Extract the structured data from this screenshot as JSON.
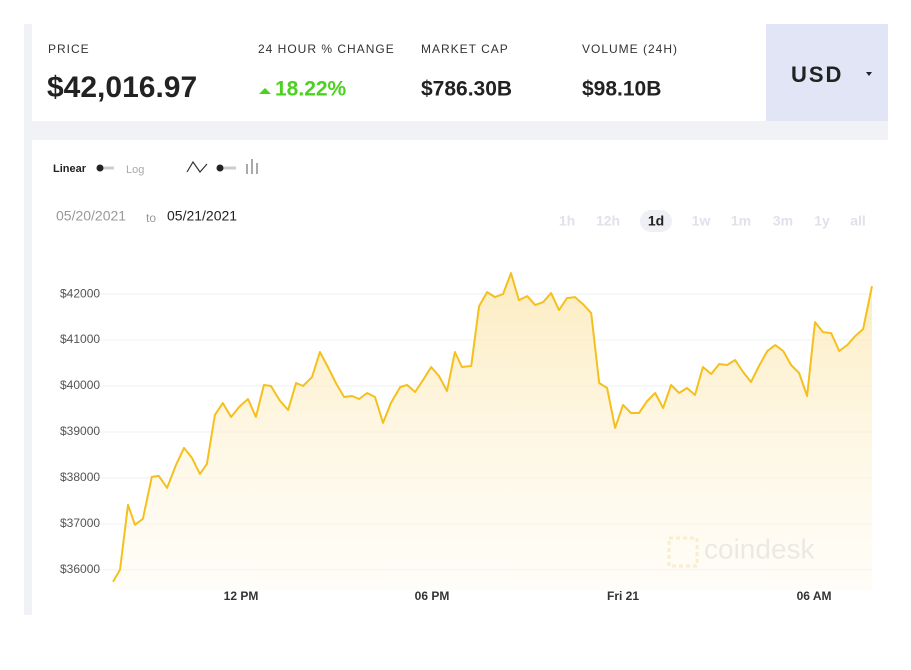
{
  "header": {
    "price_label": "PRICE",
    "price": "$42,016.97",
    "change_label": "24 HOUR % CHANGE",
    "change": "18.22%",
    "market_cap_label": "MARKET CAP",
    "market_cap": "$786.30B",
    "volume_label": "VOLUME (24H)",
    "volume": "$98.10B",
    "currency": "USD"
  },
  "controls": {
    "linear": "Linear",
    "log": "Log",
    "date_from": "05/20/2021",
    "date_to_word": "to",
    "date_to": "05/21/2021",
    "ranges": [
      "1h",
      "12h",
      "1d",
      "1w",
      "1m",
      "3m",
      "1y",
      "all"
    ],
    "active_range": "1d",
    "watermark": "coindesk"
  },
  "chart_data": {
    "type": "line",
    "color": "#f5c01e",
    "grid": true,
    "xlim": [
      7.98,
      31.82
    ],
    "xticks": [
      {
        "value": 12,
        "label": "12 PM"
      },
      {
        "value": 18,
        "label": "06 PM"
      },
      {
        "value": 24,
        "label": "Fri 21"
      },
      {
        "value": 30,
        "label": "06 AM"
      }
    ],
    "ylim": [
      35560,
      42960
    ],
    "yticks": [
      {
        "value": 36000,
        "label": "$36000"
      },
      {
        "value": 37000,
        "label": "$37000"
      },
      {
        "value": 38000,
        "label": "$38000"
      },
      {
        "value": 39000,
        "label": "$39000"
      },
      {
        "value": 40000,
        "label": "$40000"
      },
      {
        "value": 41000,
        "label": "$41000"
      },
      {
        "value": 42000,
        "label": "$42000"
      }
    ],
    "x": [
      7.98,
      8.2,
      8.45,
      8.67,
      8.92,
      9.2,
      9.42,
      9.68,
      9.96,
      10.21,
      10.46,
      10.71,
      10.93,
      11.18,
      11.43,
      11.69,
      11.94,
      12.22,
      12.47,
      12.72,
      12.94,
      13.23,
      13.48,
      13.73,
      13.95,
      14.23,
      14.48,
      14.73,
      14.98,
      15.24,
      15.49,
      15.71,
      15.96,
      16.21,
      16.46,
      16.71,
      17.0,
      17.22,
      17.47,
      17.72,
      17.97,
      18.22,
      18.47,
      18.72,
      18.94,
      19.23,
      19.48,
      19.73,
      19.98,
      20.23,
      20.48,
      20.73,
      20.99,
      21.24,
      21.49,
      21.74,
      21.99,
      22.24,
      22.49,
      22.74,
      23.0,
      23.25,
      23.5,
      23.75,
      24.0,
      24.25,
      24.5,
      24.76,
      25.01,
      25.26,
      25.51,
      25.76,
      26.01,
      26.26,
      26.51,
      26.77,
      27.02,
      27.27,
      27.52,
      27.77,
      28.02,
      28.27,
      28.53,
      28.78,
      29.03,
      29.28,
      29.53,
      29.78,
      30.03,
      30.28,
      30.54,
      30.79,
      31.04,
      31.29,
      31.54,
      31.82
    ],
    "values": [
      35739,
      36000,
      37413,
      36978,
      37109,
      38022,
      38043,
      37783,
      38283,
      38652,
      38435,
      38087,
      38304,
      39370,
      39630,
      39326,
      39543,
      39717,
      39326,
      40022,
      40000,
      39674,
      39478,
      40065,
      40000,
      40196,
      40739,
      40413,
      40065,
      39761,
      39783,
      39717,
      39848,
      39761,
      39196,
      39630,
      39978,
      40022,
      39870,
      40130,
      40413,
      40217,
      39891,
      40739,
      40413,
      40435,
      41739,
      42043,
      41935,
      42000,
      42457,
      41870,
      41957,
      41761,
      41826,
      42022,
      41652,
      41913,
      41935,
      41783,
      41587,
      40065,
      39957,
      39087,
      39587,
      39413,
      39413,
      39674,
      39848,
      39522,
      40022,
      39848,
      39957,
      39804,
      40413,
      40261,
      40478,
      40457,
      40565,
      40304,
      40087,
      40435,
      40761,
      40891,
      40761,
      40457,
      40283,
      39783,
      41391,
      41174,
      41152,
      40761,
      40891,
      41087,
      41239,
      42174
    ]
  }
}
